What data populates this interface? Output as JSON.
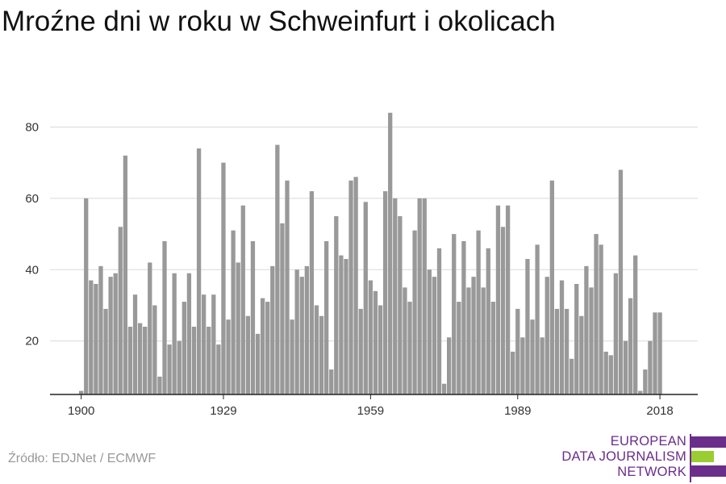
{
  "header": {
    "title": "Mroźne dni w roku w Schweinfurt i okolicach"
  },
  "footer": {
    "source": "Źródło: EDJNet / ECMWF"
  },
  "logo": {
    "lines": [
      "EUROPEAN",
      "DATA JOURNALISM",
      "NETWORK"
    ],
    "colors": {
      "text": "#6b2d8a",
      "bar_purple": "#6b2d8a",
      "bar_green": "#9acd32"
    }
  },
  "chart_data": {
    "type": "bar",
    "x_tick_labels": [
      "1900",
      "1929",
      "1959",
      "1989",
      "2018"
    ],
    "y_ticks": [
      20,
      40,
      60,
      80
    ],
    "ylim": [
      5,
      85
    ],
    "grid": true,
    "bar_color": "#999999",
    "x_start": 1900,
    "values": [
      6,
      60,
      37,
      36,
      41,
      29,
      38,
      39,
      52,
      72,
      24,
      33,
      25,
      24,
      42,
      30,
      10,
      48,
      19,
      39,
      20,
      31,
      39,
      24,
      74,
      33,
      24,
      33,
      19,
      70,
      26,
      51,
      42,
      58,
      27,
      48,
      22,
      32,
      31,
      41,
      75,
      53,
      65,
      26,
      40,
      38,
      41,
      62,
      30,
      27,
      48,
      12,
      55,
      44,
      43,
      65,
      66,
      29,
      59,
      37,
      34,
      30,
      62,
      84,
      60,
      55,
      35,
      31,
      51,
      60,
      60,
      40,
      38,
      46,
      8,
      21,
      50,
      31,
      48,
      35,
      38,
      51,
      35,
      46,
      31,
      58,
      52,
      58,
      17,
      29,
      21,
      43,
      26,
      47,
      21,
      38,
      65,
      29,
      37,
      29,
      15,
      36,
      27,
      41,
      35,
      50,
      47,
      17,
      16,
      39,
      68,
      20,
      32,
      44,
      6,
      12,
      20,
      28,
      28
    ]
  }
}
